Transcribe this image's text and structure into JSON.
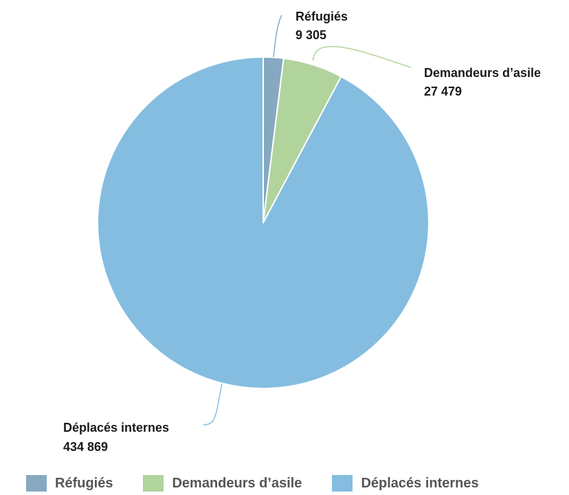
{
  "chart_data": {
    "type": "pie",
    "title": "",
    "categories": [
      "Réfugiés",
      "Demandeurs d’asile",
      "Déplacés internes"
    ],
    "values": [
      9305,
      27479,
      434869
    ],
    "value_labels": [
      "9 305",
      "27 479",
      "434 869"
    ],
    "colors": [
      "#86a9c1",
      "#b1d39c",
      "#84bde0"
    ],
    "start_angle": "12 o'clock",
    "direction": "clockwise",
    "legend_position": "bottom",
    "labels_outside_with_leader_lines": true
  },
  "legend": {
    "items": [
      {
        "label": "Réfugiés",
        "color": "#86a9c1"
      },
      {
        "label": "Demandeurs d’asile",
        "color": "#b1d39c"
      },
      {
        "label": "Déplacés internes",
        "color": "#84bde0"
      }
    ]
  }
}
